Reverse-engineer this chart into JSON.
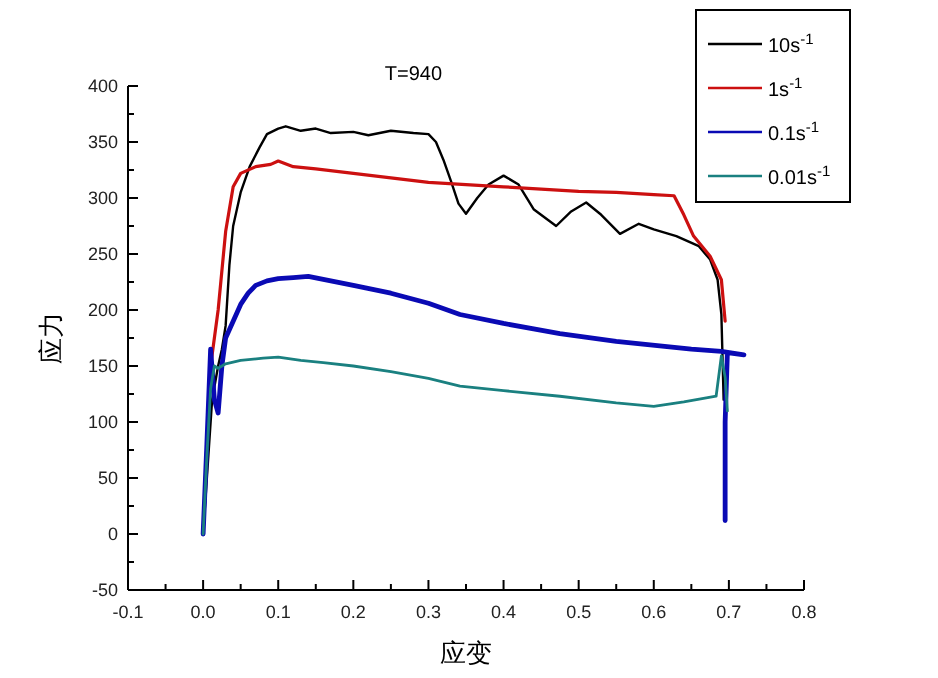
{
  "chart_data": {
    "type": "line",
    "title": "T=940",
    "xlabel": "应变",
    "ylabel": "应力",
    "legend": "top right",
    "grid": false,
    "marker": "none",
    "line_style": "solid",
    "xlim": [
      -0.1,
      0.8
    ],
    "ylim": [
      -50,
      400
    ],
    "xticks": [
      -0.1,
      {
        "value": -0.05,
        "label": null
      },
      {
        "value": 0,
        "label": "0.0"
      },
      {
        "value": 0.05,
        "label": null
      },
      0.1,
      {
        "value": 0.15,
        "label": null
      },
      0.2,
      {
        "value": 0.25,
        "label": null
      },
      0.3,
      {
        "value": 0.35,
        "label": null
      },
      0.4,
      {
        "value": 0.45,
        "label": null
      },
      0.5,
      {
        "value": 0.55,
        "label": null
      },
      0.6,
      {
        "value": 0.65,
        "label": null
      },
      0.7,
      {
        "value": 0.75,
        "label": null
      },
      0.8
    ],
    "yticks": [
      -50,
      {
        "value": -25,
        "label": null
      },
      0,
      {
        "value": 25,
        "label": null
      },
      50,
      {
        "value": 75,
        "label": null
      },
      100,
      {
        "value": 125,
        "label": null
      },
      150,
      {
        "value": 175,
        "label": null
      },
      200,
      {
        "value": 225,
        "label": null
      },
      250,
      {
        "value": 275,
        "label": null
      },
      300,
      {
        "value": 325,
        "label": null
      },
      350,
      {
        "value": 375,
        "label": null
      },
      400
    ],
    "series": [
      {
        "name": "10s$^{-1}$",
        "color": "#000000",
        "x": [
          0,
          0.012,
          0.02,
          0.025,
          0.03,
          0.035,
          0.04,
          0.05,
          0.062,
          0.075,
          0.085,
          0.1,
          0.11,
          0.13,
          0.15,
          0.17,
          0.2,
          0.22,
          0.25,
          0.28,
          0.3,
          0.31,
          0.32,
          0.33,
          0.34,
          0.35,
          0.365,
          0.38,
          0.4,
          0.42,
          0.44,
          0.47,
          0.49,
          0.51,
          0.53,
          0.555,
          0.58,
          0.6,
          0.63,
          0.66,
          0.675,
          0.685,
          0.69,
          0.693
        ],
        "values": [
          0,
          120,
          150,
          165,
          186,
          240,
          275,
          305,
          328,
          345,
          357,
          362,
          364,
          360,
          362,
          358,
          359,
          356,
          360,
          358,
          357,
          350,
          334,
          315,
          295,
          286,
          300,
          312,
          320,
          312,
          290,
          275,
          288,
          296,
          285,
          268,
          277,
          272,
          266,
          257,
          245,
          227,
          196,
          120
        ]
      },
      {
        "name": "1s$^{-1}$",
        "color": "#cc1010",
        "x": [
          0,
          0.005,
          0.01,
          0.02,
          0.03,
          0.04,
          0.05,
          0.07,
          0.09,
          0.1,
          0.12,
          0.15,
          0.2,
          0.25,
          0.3,
          0.35,
          0.4,
          0.45,
          0.5,
          0.55,
          0.6,
          0.627,
          0.64,
          0.653,
          0.675,
          0.69,
          0.695
        ],
        "values": [
          0,
          80,
          150,
          200,
          270,
          310,
          322,
          328,
          330,
          333,
          328,
          326,
          322,
          318,
          314,
          312,
          310,
          308,
          306,
          305,
          303,
          302,
          285,
          266,
          248,
          227,
          190
        ]
      },
      {
        "name": "0.1s$^{-1}$",
        "color": "#0a0ab4",
        "x": [
          0,
          0.005,
          0.01,
          0.015,
          0.02,
          0.025,
          0.03,
          0.04,
          0.05,
          0.06,
          0.07,
          0.085,
          0.1,
          0.12,
          0.14,
          0.17,
          0.2,
          0.25,
          0.3,
          0.342,
          0.4,
          0.475,
          0.55,
          0.608,
          0.65,
          0.69,
          0.72,
          0.698,
          0.695,
          0.695
        ],
        "values": [
          0,
          80,
          165,
          120,
          108,
          150,
          175,
          190,
          205,
          215,
          222,
          226,
          228,
          229,
          230,
          226,
          222,
          215,
          206,
          196,
          188,
          179,
          172,
          168,
          165,
          163,
          160,
          162,
          100,
          12
        ]
      },
      {
        "name": "0.01s$^{-1}$",
        "color": "#1a8080",
        "x": [
          0,
          0.005,
          0.01,
          0.015,
          0.02,
          0.03,
          0.05,
          0.08,
          0.1,
          0.13,
          0.16,
          0.2,
          0.25,
          0.3,
          0.342,
          0.4,
          0.475,
          0.55,
          0.6,
          0.64,
          0.683,
          0.69,
          0.695,
          0.698
        ],
        "values": [
          0,
          70,
          130,
          150,
          148,
          152,
          155,
          157,
          158,
          155,
          153,
          150,
          145,
          139,
          132,
          128,
          123,
          117,
          114,
          118,
          123,
          159,
          140,
          110
        ]
      }
    ]
  }
}
